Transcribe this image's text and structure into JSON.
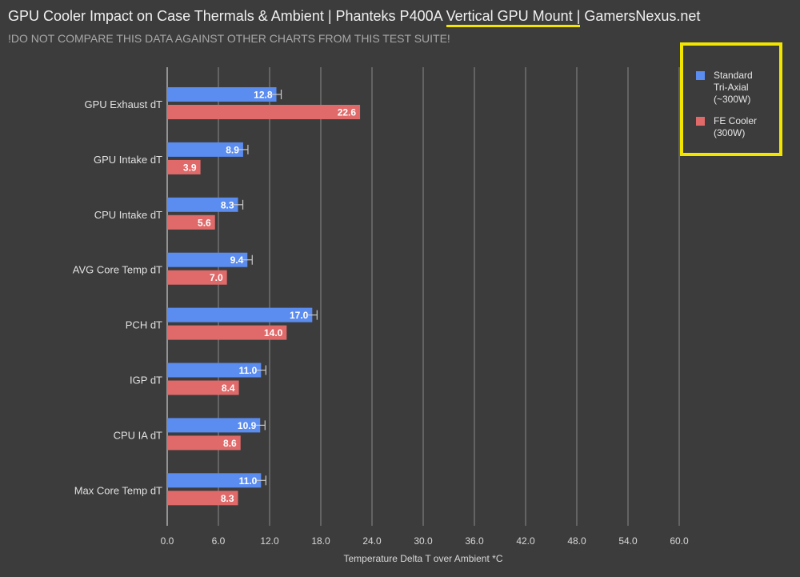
{
  "title": {
    "prefix": "GPU Cooler Impact on Case Thermals & Ambient | Phanteks P400A ",
    "highlight": "Vertical GPU Mount |",
    "suffix": " GamersNexus.net"
  },
  "subtitle": "!DO NOT COMPARE THIS DATA AGAINST OTHER CHARTS FROM THIS TEST SUITE!",
  "colors": {
    "series1": "#5b8cf0",
    "series2": "#e06a6a",
    "highlight": "#f2e500",
    "grid": "#8a8a8a",
    "background": "#3c3c3c"
  },
  "chart_data": {
    "type": "bar",
    "orientation": "horizontal",
    "title": "GPU Cooler Impact on Case Thermals & Ambient | Phanteks P400A Vertical GPU Mount | GamersNexus.net",
    "xlabel": "Temperature Delta T over Ambient *C",
    "ylabel": "",
    "xlim": [
      0,
      60
    ],
    "xticks": [
      "0.0",
      "6.0",
      "12.0",
      "18.0",
      "24.0",
      "30.0",
      "36.0",
      "42.0",
      "48.0",
      "54.0",
      "60.0"
    ],
    "xtick_values": [
      0,
      6,
      12,
      18,
      24,
      30,
      36,
      42,
      48,
      54,
      60
    ],
    "grid": true,
    "legend_position": "top-right",
    "categories": [
      "GPU Exhaust dT",
      "GPU Intake dT",
      "CPU Intake dT",
      "AVG Core Temp dT",
      "PCH dT",
      "IGP dT",
      "CPU IA dT",
      "Max Core Temp dT"
    ],
    "series": [
      {
        "name": "Standard Tri-Axial (~300W)",
        "legend_lines": [
          "Standard",
          "Tri-Axial",
          "(~300W)"
        ],
        "values": [
          12.8,
          8.9,
          8.3,
          9.4,
          17.0,
          11.0,
          10.9,
          11.0
        ],
        "labels": [
          "12.8",
          "8.9",
          "8.3",
          "9.4",
          "17.0",
          "11.0",
          "10.9",
          "11.0"
        ],
        "error_bars": true
      },
      {
        "name": "FE Cooler (300W)",
        "legend_lines": [
          "FE Cooler",
          "(300W)"
        ],
        "values": [
          22.6,
          3.9,
          5.6,
          7.0,
          14.0,
          8.4,
          8.6,
          8.3
        ],
        "labels": [
          "22.6",
          "3.9",
          "5.6",
          "7.0",
          "14.0",
          "8.4",
          "8.6",
          "8.3"
        ],
        "error_bars": false
      }
    ]
  }
}
